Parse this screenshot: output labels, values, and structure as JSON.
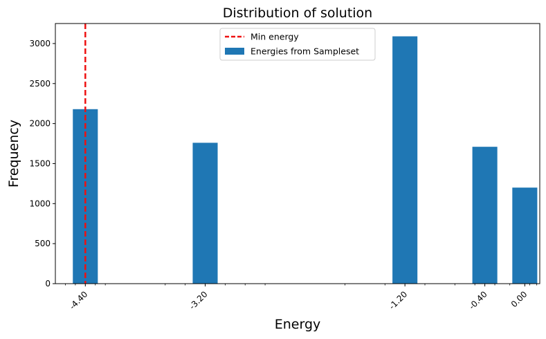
{
  "chart_data": {
    "type": "bar",
    "title": "Distribution of solution",
    "xlabel": "Energy",
    "ylabel": "Frequency",
    "categories": [
      "-4.40",
      "-3.20",
      "-1.20",
      "-0.40",
      "0.00"
    ],
    "bars": [
      {
        "x": -4.4,
        "value": 2180
      },
      {
        "x": -3.2,
        "value": 1760
      },
      {
        "x": -1.2,
        "value": 3090
      },
      {
        "x": -0.4,
        "value": 1710
      },
      {
        "x": 0.0,
        "value": 1200
      }
    ],
    "bar_width": 0.25,
    "xlim": [
      -4.7,
      0.15
    ],
    "ylim": [
      0,
      3250
    ],
    "yticks": [
      0,
      500,
      1000,
      1500,
      2000,
      2500,
      3000
    ],
    "min_energy": -4.4,
    "legend": {
      "position": "top-center",
      "entries": [
        {
          "label": "Min energy",
          "style": "dashed-line",
          "color": "#ee1111"
        },
        {
          "label": "Energies from Sampleset",
          "style": "patch",
          "color": "#1f77b4"
        }
      ]
    },
    "grid": false
  }
}
